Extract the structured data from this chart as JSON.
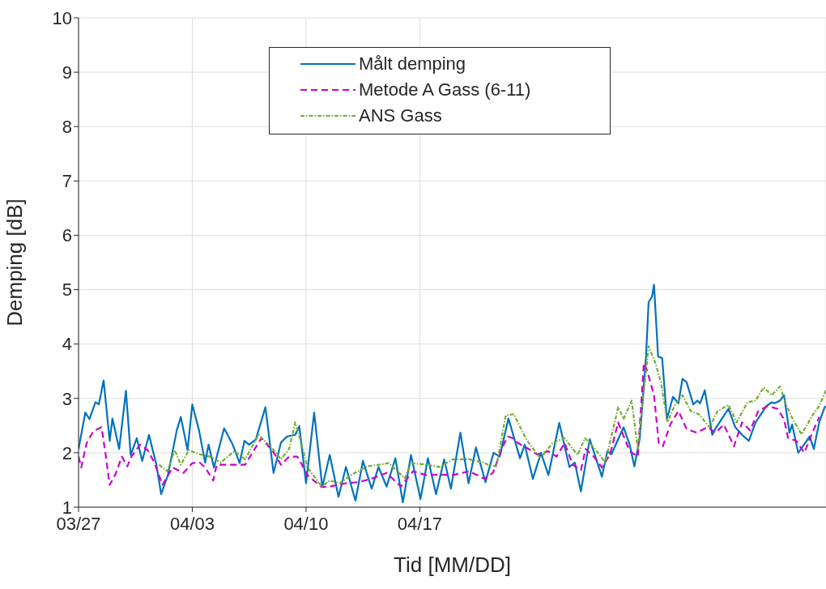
{
  "chart_data": {
    "type": "line",
    "xlabel": "Tid [MM/DD]",
    "ylabel": "Demping [dB]",
    "xlim": [
      "--03-27",
      "--05-12"
    ],
    "xticks": [
      {
        "value": "--03-27",
        "label": "03/27"
      },
      {
        "value": "--04-03",
        "label": "04/03"
      },
      {
        "value": "--04-10",
        "label": "04/10"
      },
      {
        "value": "--04-17",
        "label": "04/17"
      }
    ],
    "ylim": [
      1,
      10
    ],
    "yticks": [
      1,
      2,
      3,
      4,
      5,
      6,
      7,
      8,
      9,
      10
    ],
    "grid": true,
    "legend": "top",
    "marker": "none",
    "series": [
      {
        "name": "Målt demping",
        "color": "#0072bd",
        "line_style": "solid",
        "x": [
          "--03-27T00:00",
          "--03-27T10:00",
          "--03-27T16:00",
          "--03-28T01:00",
          "--03-28T06:00",
          "--03-28T13:00",
          "--03-28T22:00",
          "--03-29T02:00",
          "--03-29T12:00",
          "--03-29T22:00",
          "--03-30T05:00",
          "--03-30T14:00",
          "--03-30T22:00",
          "--03-31T08:00",
          "--03-31T19:00",
          "--04-01T02:00",
          "--04-01T12:00",
          "--04-02T01:00",
          "--04-02T07:00",
          "--04-02T17:00",
          "--04-03T00:00",
          "--04-03T10:00",
          "--04-03T19:00",
          "--04-04T00:00",
          "--04-04T08:00",
          "--04-04T23:00",
          "--04-05T11:00",
          "--04-05T22:00",
          "--04-06T05:00",
          "--04-06T12:00",
          "--04-06T22:00",
          "--04-07T12:00",
          "--04-08T00:00",
          "--04-08T11:00",
          "--04-08T20:00",
          "--04-09T08:00",
          "--04-09T14:00",
          "--04-10T00:00",
          "--04-10T12:00",
          "--04-11T00:00",
          "--04-11T11:00",
          "--04-12T00:00",
          "--04-12T11:00",
          "--04-13T01:00",
          "--04-13T12:00",
          "--04-14T01:00",
          "--04-14T11:00",
          "--04-14T23:00",
          "--04-15T12:00",
          "--04-15T23:00",
          "--04-16T11:00",
          "--04-17T01:00",
          "--04-17T12:00",
          "--04-18T00:00",
          "--04-18T12:00",
          "--04-18T22:00",
          "--04-19T12:00",
          "--04-20T00:00",
          "--04-20T11:00",
          "--04-21T01:00",
          "--04-21T13:00",
          "--04-21T22:00",
          "--04-22T11:00",
          "--04-23T04:00",
          "--04-23T11:00",
          "--04-23T23:00",
          "--04-24T11:00",
          "--04-24T22:00",
          "--04-25T14:00",
          "--04-26T05:00",
          "--04-26T13:00",
          "--04-26T22:00",
          "--04-27T11:00",
          "--04-28T05:00",
          "--04-28T13:00",
          "--04-28T19:00",
          "--04-29T13:00",
          "--04-29T22:00",
          "--04-30T05:00",
          "--04-30T13:00",
          "--04-30T22:00",
          "--05-01T02:00",
          "--05-01T07:00",
          "--05-01T10:00",
          "--05-01T16:00",
          "--05-01T22:00",
          "--05-02T05:00",
          "--05-02T14:00",
          "--05-02T22:00",
          "--05-03T04:00",
          "--05-03T10:00",
          "--05-03T20:00",
          "--05-04T02:00",
          "--05-04T06:00",
          "--05-04T13:00",
          "--05-05T00:00",
          "--05-05T06:00",
          "--05-05T16:00",
          "--05-06T00:00",
          "--05-06T10:00",
          "--05-06T20:00",
          "--05-07T06:00",
          "--05-07T16:00",
          "--05-08T08:00",
          "--05-08T16:00",
          "--05-08T20:00",
          "--05-09T04:00",
          "--05-09T10:00",
          "--05-09T18:00",
          "--05-09T22:00",
          "--05-10T07:00",
          "--05-11T00:00",
          "--05-11T06:00",
          "--05-11T14:00",
          "--05-11T22:00",
          "--05-12T00:00"
        ],
        "values": [
          2.07,
          2.74,
          2.62,
          2.93,
          2.89,
          3.33,
          2.22,
          2.63,
          2.07,
          3.14,
          1.96,
          2.27,
          1.85,
          2.33,
          1.78,
          1.24,
          1.59,
          2.41,
          2.66,
          2.05,
          2.89,
          2.41,
          1.82,
          2.15,
          1.73,
          2.45,
          2.17,
          1.81,
          2.22,
          2.15,
          2.25,
          2.84,
          1.63,
          2.19,
          2.3,
          2.33,
          2.49,
          1.44,
          2.74,
          1.37,
          1.96,
          1.19,
          1.74,
          1.12,
          1.85,
          1.34,
          1.74,
          1.38,
          1.9,
          1.09,
          1.96,
          1.15,
          1.9,
          1.24,
          1.88,
          1.34,
          2.37,
          1.44,
          2.1,
          1.46,
          2,
          1.93,
          2.63,
          1.9,
          2.15,
          1.52,
          2,
          1.59,
          2.55,
          1.74,
          1.82,
          1.29,
          2.25,
          1.56,
          2.03,
          1.97,
          2.47,
          2.15,
          1.75,
          2.27,
          3.74,
          4.77,
          4.87,
          5.09,
          3.77,
          3.74,
          2.62,
          3.03,
          2.91,
          3.36,
          3.3,
          2.89,
          2.96,
          2.91,
          3.15,
          2.33,
          2.47,
          2.66,
          2.81,
          2.47,
          2.33,
          2.22,
          2.56,
          2.86,
          2.93,
          2.91,
          2.96,
          3.06,
          2.37,
          2.52,
          2,
          2.3,
          2.07,
          2.56,
          2.84,
          2.85
        ]
      },
      {
        "name": "Metode A Gass (6-11)",
        "color": "#cc00cc",
        "line_style": "dashed",
        "x": [
          "--03-27T00:00",
          "--03-27T04:00",
          "--03-27T12:00",
          "--03-27T22:00",
          "--03-28T10:00",
          "--03-28T16:00",
          "--03-28T22:00",
          "--03-29T06:00",
          "--03-29T16:00",
          "--03-30T00:00",
          "--03-30T06:00",
          "--03-30T19:00",
          "--03-31T06:00",
          "--03-31T16:00",
          "--04-01T04:00",
          "--04-01T19:00",
          "--04-02T11:00",
          "--04-03T00:00",
          "--04-03T11:00",
          "--04-03T19:00",
          "--04-04T07:00",
          "--04-04T12:00",
          "--04-05T06:00",
          "--04-06T06:00",
          "--04-07T06:00",
          "--04-07T23:00",
          "--04-08T11:00",
          "--04-08T23:00",
          "--04-09T11:00",
          "--04-09T18:00",
          "--04-10T02:00",
          "--04-10T23:00",
          "--04-11T11:00",
          "--04-12T11:00",
          "--04-13T06:00",
          "--04-14T02:00",
          "--04-14T23:00",
          "--04-15T20:00",
          "--04-16T14:00",
          "--04-17T10:00",
          "--04-18T05:00",
          "--04-19T01:00",
          "--04-20T01:00",
          "--04-21T00:00",
          "--04-21T12:00",
          "--04-22T02:00",
          "--04-22T10:00",
          "--04-22T17:00",
          "--04-23T01:00",
          "--04-23T17:00",
          "--04-24T05:00",
          "--04-24T22:00",
          "--04-25T10:00",
          "--04-25T22:00",
          "--04-26T10:00",
          "--04-26T22:00",
          "--04-27T05:00",
          "--04-27T17:00",
          "--04-28T05:00",
          "--04-28T17:00",
          "--04-29T05:00",
          "--04-29T22:00",
          "--04-30T10:00",
          "--04-30T19:00",
          "--05-01T00:00",
          "--05-01T10:00",
          "--05-01T17:00",
          "--05-01T23:00",
          "--05-02T10:00",
          "--05-02T22:00",
          "--05-03T10:00",
          "--05-04T01:00",
          "--05-04T17:00",
          "--05-05T05:00",
          "--05-05T17:00",
          "--05-06T08:00",
          "--05-06T20:00",
          "--05-07T08:00",
          "--05-07T20:00",
          "--05-08T10:00",
          "--05-09T00:00",
          "--05-09T10:00",
          "--05-09T16:00",
          "--05-10T04:00",
          "--05-10T16:00",
          "--05-11T04:00",
          "--05-11T14:00"
        ],
        "values": [
          1.93,
          1.73,
          2.18,
          2.4,
          2.47,
          1.97,
          1.41,
          1.59,
          1.93,
          1.75,
          1.93,
          2.15,
          2.05,
          1.82,
          1.41,
          1.73,
          1.63,
          1.81,
          1.82,
          1.73,
          1.49,
          1.78,
          1.78,
          1.78,
          2.27,
          2.03,
          1.78,
          1.93,
          1.93,
          1.78,
          1.59,
          1.37,
          1.38,
          1.44,
          1.46,
          1.53,
          1.63,
          1.38,
          1.66,
          1.59,
          1.6,
          1.59,
          1.66,
          1.52,
          1.63,
          2.1,
          2.3,
          2.27,
          2.18,
          2.07,
          1.97,
          2.03,
          1.93,
          2.18,
          1.78,
          1.68,
          2.07,
          1.93,
          1.73,
          1.97,
          2.56,
          2.03,
          1.93,
          3.65,
          3.5,
          3.06,
          2.18,
          2.12,
          2.52,
          2.77,
          2.44,
          2.37,
          2.47,
          2.37,
          2.52,
          2.12,
          2.56,
          2.41,
          2.77,
          2.86,
          2.81,
          2.62,
          2.27,
          2.22,
          2,
          2.37,
          2.66
        ]
      },
      {
        "name": "ANS Gass",
        "color": "#77ac30",
        "line_style": "dotted",
        "x": [
          "--03-31T23:00",
          "--04-01T11:00",
          "--04-01T22:00",
          "--04-02T07:00",
          "--04-02T19:00",
          "--04-03T11:00",
          "--04-04T02:00",
          "--04-04T18:00",
          "--04-05T14:00",
          "--04-06T06:00",
          "--04-07T02:00",
          "--04-07T23:00",
          "--04-08T11:00",
          "--04-08T23:00",
          "--04-09T08:00",
          "--04-09T17:00",
          "--04-10T02:00",
          "--04-10T23:00",
          "--04-11T11:00",
          "--04-12T02:00",
          "--04-12T18:00",
          "--04-13T18:00",
          "--04-14T11:00",
          "--04-15T02:00",
          "--04-16T02:00",
          "--04-16T11:00",
          "--04-17T11:00",
          "--04-18T05:00",
          "--04-19T01:00",
          "--04-20T01:00",
          "--04-20T22:00",
          "--04-21T05:00",
          "--04-21T17:00",
          "--04-21T22:00",
          "--04-22T07:00",
          "--04-22T19:00",
          "--04-23T10:00",
          "--04-23T17:00",
          "--04-24T10:00",
          "--04-25T05:00",
          "--04-25T22:00",
          "--04-26T10:00",
          "--04-26T17:00",
          "--04-27T04:00",
          "--04-27T17:00",
          "--04-28T10:00",
          "--04-29T05:00",
          "--04-29T13:00",
          "--04-30T01:00",
          "--04-30T10:00",
          "--05-01T02:00",
          "--05-01T12:00",
          "--05-01T20:00",
          "--05-02T06:00",
          "--05-02T16:00",
          "--05-03T04:00",
          "--05-03T16:00",
          "--05-04T04:00",
          "--05-04T20:00",
          "--05-05T08:00",
          "--05-06T00:00",
          "--05-06T12:00",
          "--05-07T04:00",
          "--05-07T16:00",
          "--05-08T04:00",
          "--05-08T16:00",
          "--05-09T04:00",
          "--05-09T14:00",
          "--05-10T00:00",
          "--05-10T12:00",
          "--05-11T04:00",
          "--05-11T14:00",
          "--05-12T00:00"
        ],
        "values": [
          1.78,
          1.66,
          2.05,
          1.78,
          2.05,
          1.97,
          1.93,
          1.82,
          2.03,
          1.88,
          2.33,
          2.07,
          1.88,
          2.07,
          2.56,
          2.18,
          1.73,
          1.38,
          1.49,
          1.44,
          1.59,
          1.75,
          1.78,
          1.81,
          1.53,
          1.81,
          1.78,
          1.74,
          1.88,
          1.88,
          1.82,
          1.78,
          1.75,
          2.07,
          2.69,
          2.71,
          2.33,
          2.18,
          1.9,
          2.19,
          2.27,
          2.07,
          1.96,
          2.27,
          2.1,
          1.82,
          2.84,
          2.62,
          2.96,
          2.07,
          3.96,
          3.65,
          3.3,
          2.56,
          2.86,
          3.06,
          2.77,
          2.71,
          2.47,
          2.77,
          2.88,
          2.56,
          2.93,
          2.96,
          3.2,
          3.06,
          3.22,
          2.86,
          2.59,
          2.34,
          2.69,
          2.86,
          3.15
        ]
      }
    ]
  }
}
